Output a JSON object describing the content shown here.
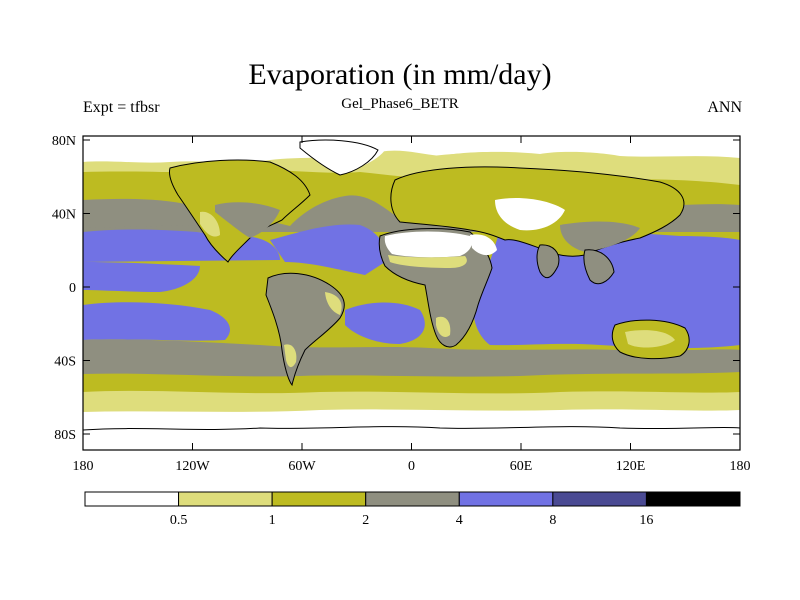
{
  "title": "Evaporation (in mm/day)",
  "subtitle": "Gel_Phase6_BETR",
  "left_label": "Expt = tfbsr",
  "right_label": "ANN",
  "lat_labels": [
    "80N",
    "40N",
    "0",
    "40S",
    "80S"
  ],
  "lon_labels": [
    "180",
    "120W",
    "60W",
    "0",
    "60E",
    "120E",
    "180"
  ],
  "colorbar": {
    "labels": [
      "0.5",
      "1",
      "2",
      "4",
      "8",
      "16"
    ],
    "colors": [
      "#ffffff",
      "#dedd7c",
      "#bdbb21",
      "#8f8f80",
      "#7172e4",
      "#4a4a93",
      "#000000"
    ]
  },
  "colors": {
    "very_low": "#ffffff",
    "low": "#dedd7c",
    "mid_low": "#bdbb21",
    "mid": "#8f8f80",
    "high": "#7172e4",
    "coast": "#000000"
  }
}
